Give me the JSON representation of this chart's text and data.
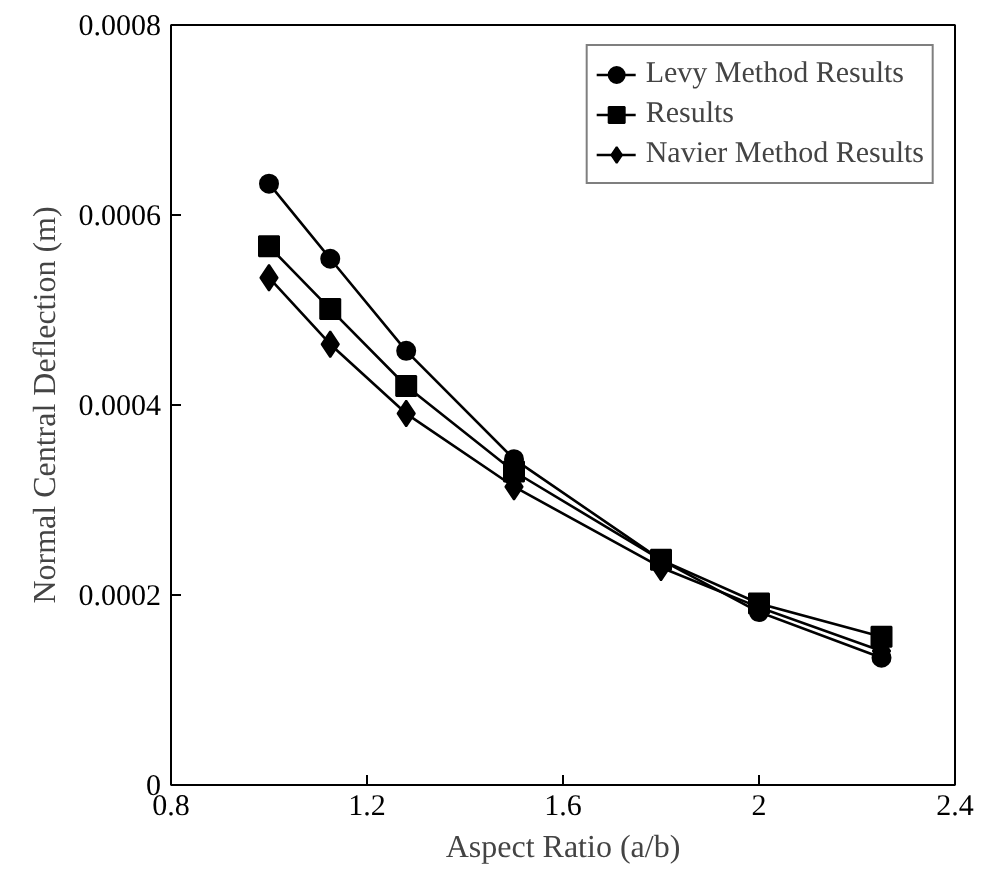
{
  "chart_data": {
    "type": "line",
    "xlabel": "Aspect Ratio (a/b)",
    "ylabel": "Normal Central Deflection (m)",
    "x": [
      1.0,
      1.125,
      1.28,
      1.5,
      1.8,
      2.0,
      2.25
    ],
    "series": [
      {
        "name": "Levy Method Results",
        "color": "#000000",
        "marker": "circle",
        "values": [
          0.000633,
          0.000554,
          0.000457,
          0.000343,
          0.000237,
          0.000182,
          0.000134
        ]
      },
      {
        "name": "Results",
        "color": "#000000",
        "marker": "square",
        "values": [
          0.000567,
          0.000501,
          0.00042,
          0.00033,
          0.000237,
          0.000191,
          0.000156
        ]
      },
      {
        "name": "Navier Method Results",
        "color": "#000000",
        "marker": "diamond",
        "values": [
          0.000534,
          0.000464,
          0.000391,
          0.000314,
          0.000229,
          0.000187,
          0.000141
        ]
      }
    ],
    "xlim": [
      0.8,
      2.4
    ],
    "xticks": [
      0.8,
      1.2,
      1.6,
      2,
      2.4
    ],
    "ylim": [
      0,
      0.0008
    ],
    "yticks": [
      {
        "value": 0,
        "label": "0"
      },
      {
        "value": 0.0002,
        "label": "0.0002"
      },
      {
        "value": 0.0004,
        "label": "0.0004"
      },
      {
        "value": 0.0006,
        "label": "0.0006"
      },
      {
        "value": 0.0008,
        "label": "0.0008"
      }
    ],
    "grid": false,
    "legend": "top right",
    "line_style": "solid"
  }
}
